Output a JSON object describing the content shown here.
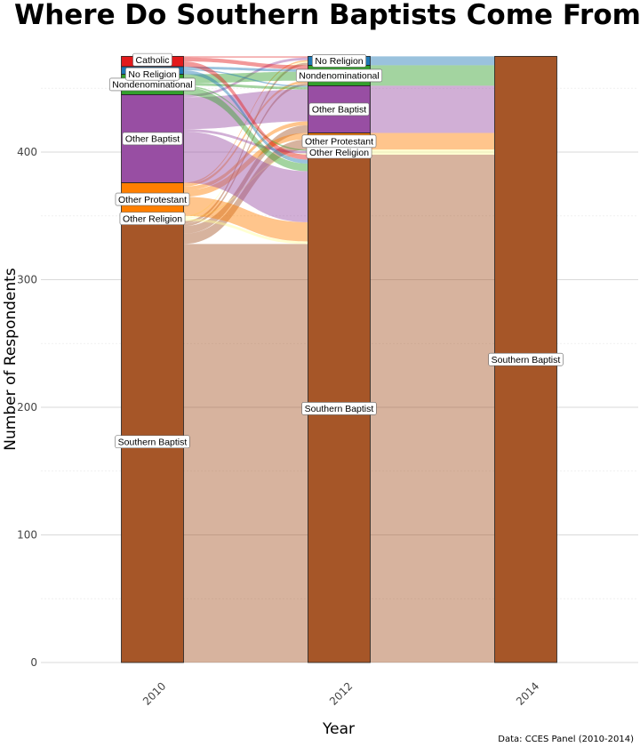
{
  "chart_data": {
    "type": "alluvial",
    "title": "Where Do Southern Baptists Come From?",
    "xlabel": "Year",
    "ylabel": "Number of Respondents",
    "caption": "Data: CCES Panel (2010-2014)",
    "x": [
      "2010",
      "2012",
      "2014"
    ],
    "ylim": [
      0,
      475
    ],
    "yticks": [
      0,
      100,
      200,
      300,
      400
    ],
    "grid": true,
    "colors": {
      "Catholic": "#e31a1c",
      "No Religion": "#1f78b4",
      "Nondenominational": "#33a02c",
      "Other Baptist": "#984ea3",
      "Other Protestant": "#ff7f00",
      "Other Religion": "#ffff99",
      "Southern Baptist": "#a65628"
    },
    "stacks": {
      "2010": [
        {
          "category": "Southern Baptist",
          "value": 346
        },
        {
          "category": "Other Religion",
          "value": 4
        },
        {
          "category": "Other Protestant",
          "value": 26
        },
        {
          "category": "Other Baptist",
          "value": 69
        },
        {
          "category": "Nondenominational",
          "value": 16
        },
        {
          "category": "No Religion",
          "value": 6
        },
        {
          "category": "Catholic",
          "value": 8
        }
      ],
      "2012": [
        {
          "category": "Southern Baptist",
          "value": 398
        },
        {
          "category": "Other Religion",
          "value": 4
        },
        {
          "category": "Other Protestant",
          "value": 13
        },
        {
          "category": "Other Baptist",
          "value": 37
        },
        {
          "category": "Nondenominational",
          "value": 16
        },
        {
          "category": "No Religion",
          "value": 7
        }
      ],
      "2014": [
        {
          "category": "Southern Baptist",
          "value": 475
        }
      ]
    },
    "flows_2010_2012": [
      {
        "from": "Southern Baptist",
        "to": "Southern Baptist",
        "value": 328
      },
      {
        "from": "Southern Baptist",
        "to": "Other Protestant",
        "value": 8
      },
      {
        "from": "Southern Baptist",
        "to": "Other Baptist",
        "value": 6
      },
      {
        "from": "Southern Baptist",
        "to": "Nondenominational",
        "value": 2
      },
      {
        "from": "Southern Baptist",
        "to": "No Religion",
        "value": 2
      },
      {
        "from": "Other Religion",
        "to": "Southern Baptist",
        "value": 2
      },
      {
        "from": "Other Religion",
        "to": "Other Religion",
        "value": 1
      },
      {
        "from": "Other Religion",
        "to": "No Religion",
        "value": 1
      },
      {
        "from": "Other Protestant",
        "to": "Southern Baptist",
        "value": 15
      },
      {
        "from": "Other Protestant",
        "to": "Other Protestant",
        "value": 5
      },
      {
        "from": "Other Protestant",
        "to": "Other Baptist",
        "value": 3
      },
      {
        "from": "Other Protestant",
        "to": "Nondenominational",
        "value": 2
      },
      {
        "from": "Other Protestant",
        "to": "No Religion",
        "value": 1
      },
      {
        "from": "Other Baptist",
        "to": "Southern Baptist",
        "value": 40
      },
      {
        "from": "Other Baptist",
        "to": "Other Religion",
        "value": 2
      },
      {
        "from": "Other Baptist",
        "to": "Other Baptist",
        "value": 25
      },
      {
        "from": "Other Baptist",
        "to": "No Religion",
        "value": 2
      },
      {
        "from": "Nondenominational",
        "to": "Southern Baptist",
        "value": 6
      },
      {
        "from": "Nondenominational",
        "to": "Other Religion",
        "value": 1
      },
      {
        "from": "Nondenominational",
        "to": "Other Baptist",
        "value": 2
      },
      {
        "from": "Nondenominational",
        "to": "Nondenominational",
        "value": 7
      },
      {
        "from": "No Religion",
        "to": "Southern Baptist",
        "value": 3
      },
      {
        "from": "No Religion",
        "to": "Other Baptist",
        "value": 1
      },
      {
        "from": "No Religion",
        "to": "Nondenominational",
        "value": 2
      },
      {
        "from": "Catholic",
        "to": "Southern Baptist",
        "value": 4
      },
      {
        "from": "Catholic",
        "to": "Nondenominational",
        "value": 3
      },
      {
        "from": "Catholic",
        "to": "No Religion",
        "value": 1
      }
    ],
    "flows_2012_2014": [
      {
        "from": "Southern Baptist",
        "to": "Southern Baptist",
        "value": 398
      },
      {
        "from": "Other Religion",
        "to": "Southern Baptist",
        "value": 4
      },
      {
        "from": "Other Protestant",
        "to": "Southern Baptist",
        "value": 13
      },
      {
        "from": "Other Baptist",
        "to": "Southern Baptist",
        "value": 37
      },
      {
        "from": "Nondenominational",
        "to": "Southern Baptist",
        "value": 16
      },
      {
        "from": "No Religion",
        "to": "Southern Baptist",
        "value": 7
      }
    ]
  }
}
